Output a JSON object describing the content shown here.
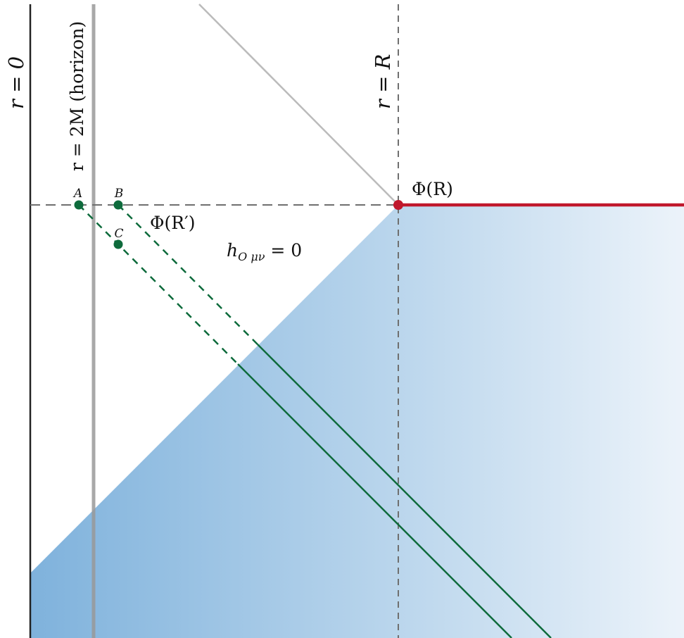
{
  "labels": {
    "r_zero": "r = 0",
    "r_horizon": "r = 2M (horizon)",
    "r_R": "r = R",
    "phi_R": "Φ(R)",
    "phi_R_prime": "Φ(R′)",
    "h_zero": "h",
    "h_zero_sub": "O μν",
    "h_zero_rhs": " = 0",
    "point_A": "A",
    "point_B": "B",
    "point_C": "C"
  },
  "colors": {
    "shade_dark": "#7fb2dc",
    "shade_light": "#ecf3fa",
    "boundary": "#222222",
    "horizon": "#999999",
    "guide": "#6f6f6f",
    "light_ray": "#bbbbbb",
    "green": "#0e6b3c",
    "red": "#c0182c"
  }
}
